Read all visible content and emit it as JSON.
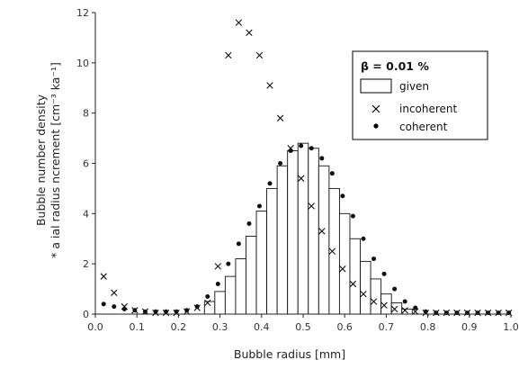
{
  "chart_data": {
    "type": "bar",
    "xlabel": "Bubble radius  [mm]",
    "ylabel_line1": "Bubble number density",
    "ylabel_line2": "* a ial radius ncrement  [cm⁻³  ka⁻¹]",
    "xlim": [
      0.0,
      1.0
    ],
    "ylim": [
      0,
      12
    ],
    "x_ticks": [
      0.0,
      0.1,
      0.2,
      0.3,
      0.4,
      0.5,
      0.6,
      0.7,
      0.8,
      0.9,
      1.0
    ],
    "x_tick_labels": [
      "0.0",
      "0.1",
      "0.2",
      "0.3",
      "0.4",
      "0.5",
      "0.6",
      "0.7",
      "0.8",
      "0.9",
      "1.0"
    ],
    "y_ticks": [
      0,
      2,
      4,
      6,
      8,
      10,
      12
    ],
    "y_tick_labels": [
      "0",
      "2",
      "4",
      "6",
      "8",
      "10",
      "12"
    ],
    "grid": false,
    "legend": {
      "title": "β = 0.01 %",
      "position": "top-right",
      "entries": [
        "given",
        "incoherent",
        "coherent"
      ]
    },
    "bin_width": 0.025,
    "series": [
      {
        "name": "given",
        "type": "bar",
        "x": [
          0.275,
          0.3,
          0.325,
          0.35,
          0.375,
          0.4,
          0.425,
          0.45,
          0.475,
          0.5,
          0.525,
          0.55,
          0.575,
          0.6,
          0.625,
          0.65,
          0.675,
          0.7,
          0.725,
          0.75
        ],
        "values": [
          0.5,
          0.9,
          1.5,
          2.2,
          3.1,
          4.1,
          5.0,
          5.9,
          6.5,
          6.8,
          6.6,
          5.9,
          5.0,
          4.0,
          3.0,
          2.1,
          1.4,
          0.8,
          0.45,
          0.2
        ]
      },
      {
        "name": "incoherent",
        "type": "scatter",
        "marker": "x",
        "points": [
          [
            0.02,
            1.5
          ],
          [
            0.045,
            0.85
          ],
          [
            0.07,
            0.3
          ],
          [
            0.095,
            0.15
          ],
          [
            0.12,
            0.1
          ],
          [
            0.145,
            0.05
          ],
          [
            0.17,
            0.05
          ],
          [
            0.195,
            0.05
          ],
          [
            0.22,
            0.1
          ],
          [
            0.245,
            0.25
          ],
          [
            0.27,
            0.45
          ],
          [
            0.295,
            1.9
          ],
          [
            0.32,
            10.3
          ],
          [
            0.345,
            11.6
          ],
          [
            0.37,
            11.2
          ],
          [
            0.395,
            10.3
          ],
          [
            0.42,
            9.1
          ],
          [
            0.445,
            7.8
          ],
          [
            0.47,
            6.6
          ],
          [
            0.495,
            5.4
          ],
          [
            0.52,
            4.3
          ],
          [
            0.545,
            3.3
          ],
          [
            0.57,
            2.5
          ],
          [
            0.595,
            1.8
          ],
          [
            0.62,
            1.2
          ],
          [
            0.645,
            0.8
          ],
          [
            0.67,
            0.5
          ],
          [
            0.695,
            0.35
          ],
          [
            0.72,
            0.2
          ],
          [
            0.745,
            0.15
          ],
          [
            0.77,
            0.1
          ],
          [
            0.795,
            0.05
          ],
          [
            0.82,
            0.05
          ],
          [
            0.845,
            0.05
          ],
          [
            0.87,
            0.05
          ],
          [
            0.895,
            0.05
          ],
          [
            0.92,
            0.05
          ],
          [
            0.945,
            0.05
          ],
          [
            0.97,
            0.05
          ],
          [
            0.995,
            0.05
          ]
        ]
      },
      {
        "name": "coherent",
        "type": "scatter",
        "marker": "dot",
        "points": [
          [
            0.02,
            0.4
          ],
          [
            0.045,
            0.3
          ],
          [
            0.07,
            0.2
          ],
          [
            0.095,
            0.15
          ],
          [
            0.12,
            0.1
          ],
          [
            0.145,
            0.1
          ],
          [
            0.17,
            0.1
          ],
          [
            0.195,
            0.1
          ],
          [
            0.22,
            0.15
          ],
          [
            0.245,
            0.3
          ],
          [
            0.27,
            0.7
          ],
          [
            0.295,
            1.2
          ],
          [
            0.32,
            2.0
          ],
          [
            0.345,
            2.8
          ],
          [
            0.37,
            3.6
          ],
          [
            0.395,
            4.3
          ],
          [
            0.42,
            5.2
          ],
          [
            0.445,
            6.0
          ],
          [
            0.47,
            6.5
          ],
          [
            0.495,
            6.7
          ],
          [
            0.52,
            6.6
          ],
          [
            0.545,
            6.2
          ],
          [
            0.57,
            5.6
          ],
          [
            0.595,
            4.7
          ],
          [
            0.62,
            3.9
          ],
          [
            0.645,
            3.0
          ],
          [
            0.67,
            2.2
          ],
          [
            0.695,
            1.6
          ],
          [
            0.72,
            1.0
          ],
          [
            0.745,
            0.5
          ],
          [
            0.77,
            0.25
          ],
          [
            0.795,
            0.1
          ],
          [
            0.82,
            0.05
          ],
          [
            0.845,
            0.05
          ],
          [
            0.87,
            0.05
          ],
          [
            0.895,
            0.05
          ],
          [
            0.92,
            0.05
          ],
          [
            0.945,
            0.05
          ],
          [
            0.97,
            0.05
          ],
          [
            0.995,
            0.05
          ]
        ]
      }
    ]
  }
}
